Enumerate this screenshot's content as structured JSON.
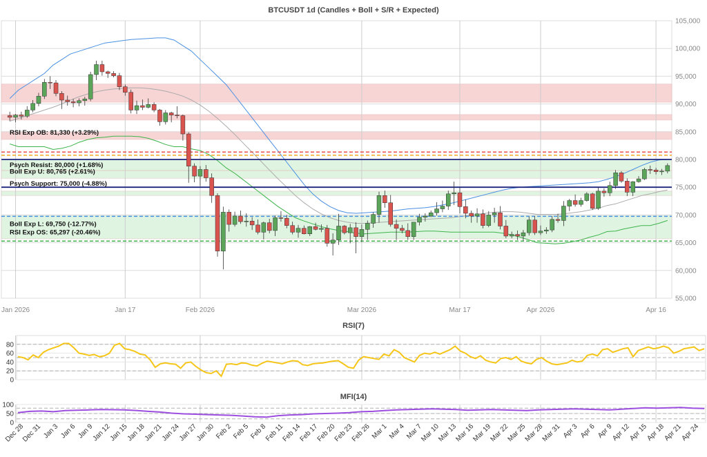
{
  "chart_data": [
    {
      "type": "candlestick",
      "title": "BTCUSDT 1d (Candles + Boll + S/R + Expected)",
      "ylim": [
        55000,
        105000
      ],
      "yticks": [
        "55,000",
        "60,000",
        "65,000",
        "70,000",
        "75,000",
        "80,000",
        "85,000",
        "90,000",
        "95,000",
        "100,000",
        "105,000"
      ],
      "xticks": [
        "Jan 2026",
        "Jan 17",
        "Feb 2026",
        "Mar 2026",
        "Mar 17",
        "Apr 2026",
        "Apr 16"
      ],
      "candles": [
        [
          87900,
          88600,
          86900,
          87600
        ],
        [
          87600,
          88200,
          86700,
          88000
        ],
        [
          88000,
          88600,
          87200,
          87800
        ],
        [
          87800,
          89600,
          87500,
          88900
        ],
        [
          88900,
          90700,
          88500,
          90100
        ],
        [
          90100,
          92000,
          89600,
          91400
        ],
        [
          91400,
          94500,
          90900,
          93900
        ],
        [
          93900,
          95000,
          92700,
          93800
        ],
        [
          93800,
          94300,
          91400,
          91900
        ],
        [
          91900,
          92300,
          89100,
          90700
        ],
        [
          90700,
          91500,
          89700,
          90400
        ],
        [
          90400,
          90900,
          89400,
          90200
        ],
        [
          90200,
          91000,
          89600,
          90600
        ],
        [
          90600,
          91300,
          89700,
          90900
        ],
        [
          90900,
          95800,
          90500,
          95300
        ],
        [
          95300,
          97800,
          94300,
          97100
        ],
        [
          97100,
          97800,
          95100,
          95800
        ],
        [
          95800,
          96000,
          94700,
          95500
        ],
        [
          95500,
          95900,
          94800,
          95100
        ],
        [
          95100,
          95600,
          92500,
          93100
        ],
        [
          93100,
          93500,
          91500,
          92100
        ],
        [
          92100,
          92600,
          88300,
          88900
        ],
        [
          88900,
          90600,
          88200,
          89700
        ],
        [
          89700,
          90800,
          88900,
          89400
        ],
        [
          89400,
          91000,
          89200,
          89900
        ],
        [
          89900,
          90300,
          88500,
          88900
        ],
        [
          88900,
          89100,
          86100,
          86800
        ],
        [
          86800,
          88900,
          86300,
          88400
        ],
        [
          88400,
          88600,
          86700,
          88000
        ],
        [
          88000,
          89600,
          87400,
          87900
        ],
        [
          87900,
          88100,
          83400,
          84600
        ],
        [
          84600,
          84900,
          75800,
          78800
        ],
        [
          78800,
          79300,
          75900,
          77000
        ],
        [
          77000,
          78800,
          75200,
          78200
        ],
        [
          78200,
          79000,
          76000,
          76700
        ],
        [
          76700,
          77500,
          72200,
          73500
        ],
        [
          73500,
          73900,
          62500,
          63500
        ],
        [
          63500,
          71500,
          60200,
          70500
        ],
        [
          70500,
          71000,
          67000,
          68300
        ],
        [
          68300,
          70600,
          67900,
          69800
        ],
        [
          69800,
          70800,
          68400,
          68800
        ],
        [
          68800,
          70300,
          67900,
          68900
        ],
        [
          68900,
          69600,
          67300,
          68200
        ],
        [
          68200,
          69200,
          66500,
          66900
        ],
        [
          66900,
          68800,
          65600,
          68600
        ],
        [
          68600,
          69300,
          66700,
          67200
        ],
        [
          67200,
          69900,
          66200,
          69500
        ],
        [
          69500,
          70700,
          68800,
          69400
        ],
        [
          69400,
          70000,
          67600,
          68100
        ],
        [
          68100,
          68800,
          66500,
          66900
        ],
        [
          66900,
          68200,
          65900,
          67600
        ],
        [
          67600,
          68100,
          66500,
          66600
        ],
        [
          66600,
          68000,
          66200,
          67900
        ],
        [
          67900,
          68600,
          67200,
          67400
        ],
        [
          67400,
          68300,
          66900,
          67600
        ],
        [
          67600,
          68200,
          64300,
          64900
        ],
        [
          64900,
          66700,
          62700,
          65500
        ],
        [
          65500,
          70200,
          64600,
          68000
        ],
        [
          68000,
          68200,
          66500,
          66800
        ],
        [
          66800,
          68400,
          64900,
          67700
        ],
        [
          67700,
          68700,
          63100,
          66100
        ],
        [
          66100,
          68300,
          65100,
          67400
        ],
        [
          67400,
          69000,
          65500,
          68500
        ],
        [
          68500,
          70500,
          67700,
          70100
        ],
        [
          70100,
          74200,
          68600,
          73500
        ],
        [
          73500,
          74400,
          71300,
          72200
        ],
        [
          72200,
          73600,
          67900,
          68300
        ],
        [
          68300,
          69200,
          65500,
          67600
        ],
        [
          67600,
          68200,
          66700,
          67200
        ],
        [
          67200,
          68500,
          65500,
          66100
        ],
        [
          66100,
          68200,
          65500,
          68700
        ],
        [
          68700,
          70200,
          68100,
          69600
        ],
        [
          69600,
          70300,
          68800,
          69800
        ],
        [
          69800,
          70800,
          69600,
          70400
        ],
        [
          70400,
          72300,
          69900,
          71100
        ],
        [
          71100,
          72600,
          70500,
          71600
        ],
        [
          71600,
          74400,
          70900,
          73800
        ],
        [
          73800,
          76000,
          71800,
          74000
        ],
        [
          74000,
          74900,
          70300,
          71500
        ],
        [
          71500,
          72800,
          69400,
          70300
        ],
        [
          70300,
          70800,
          68600,
          69800
        ],
        [
          69800,
          71200,
          68600,
          70200
        ],
        [
          70200,
          71000,
          67600,
          68100
        ],
        [
          68100,
          70700,
          67800,
          70000
        ],
        [
          70000,
          71300,
          68600,
          70400
        ],
        [
          70400,
          71600,
          67400,
          68000
        ],
        [
          68000,
          69100,
          65800,
          66200
        ],
        [
          66200,
          67000,
          65800,
          66500
        ],
        [
          66500,
          67200,
          65500,
          66200
        ],
        [
          66200,
          67300,
          65300,
          66800
        ],
        [
          66800,
          69700,
          66300,
          69100
        ],
        [
          69100,
          69800,
          66400,
          66800
        ],
        [
          66800,
          68100,
          66400,
          67100
        ],
        [
          67100,
          67800,
          66600,
          67300
        ],
        [
          67300,
          69800,
          66900,
          69200
        ],
        [
          69200,
          70200,
          68600,
          69000
        ],
        [
          69000,
          72500,
          68000,
          71600
        ],
        [
          71600,
          72900,
          70700,
          72600
        ],
        [
          72600,
          73700,
          71500,
          71900
        ],
        [
          71900,
          73100,
          71500,
          72600
        ],
        [
          72600,
          74100,
          72400,
          73800
        ],
        [
          73800,
          74000,
          70900,
          71200
        ],
        [
          71200,
          75000,
          70900,
          74300
        ],
        [
          74300,
          74800,
          73300,
          74000
        ],
        [
          74000,
          76000,
          73400,
          75300
        ],
        [
          75300,
          78100,
          74700,
          77600
        ],
        [
          77600,
          77900,
          75800,
          76100
        ],
        [
          76100,
          76600,
          73400,
          74100
        ],
        [
          74100,
          76100,
          73400,
          76000
        ],
        [
          76000,
          77000,
          75800,
          76500
        ],
        [
          76500,
          78500,
          76300,
          78200
        ],
        [
          78200,
          78900,
          77400,
          78100
        ],
        [
          78100,
          78500,
          77300,
          77800
        ],
        [
          77800,
          78300,
          77200,
          77900
        ],
        [
          77900,
          79300,
          77500,
          78900
        ]
      ],
      "boll_mid": [
        86900,
        87400,
        87900,
        88400,
        88900,
        89400,
        90000,
        90700,
        91300,
        91800,
        92200,
        92500,
        92700,
        92800,
        92900,
        92900,
        92800,
        92600,
        92300,
        91900,
        91400,
        90700,
        89800,
        88700,
        87400,
        86000,
        84500,
        82900,
        81300,
        79700,
        78100,
        76500,
        75000,
        73500,
        72200,
        71100,
        70200,
        69500,
        69000,
        68700,
        68500,
        68500,
        68600,
        68700,
        68800,
        68900,
        69000,
        69100,
        69200,
        69300,
        69400,
        69500,
        69700,
        69900,
        70100,
        70300,
        70500,
        70600,
        70600,
        70500,
        70300,
        70100,
        70100,
        70100,
        70200,
        70400,
        70600,
        70900,
        71200,
        71700,
        72000,
        72500,
        73000,
        73500,
        73800,
        74200,
        74500
      ],
      "boll_up": [
        91000,
        92500,
        93500,
        94500,
        95500,
        97000,
        98000,
        99000,
        99500,
        100000,
        100500,
        101000,
        101200,
        101400,
        101600,
        101700,
        101800,
        101900,
        101900,
        101500,
        100500,
        99500,
        98000,
        96500,
        95000,
        93500,
        91500,
        89500,
        87500,
        85500,
        83500,
        81500,
        79500,
        77500,
        75500,
        73800,
        72500,
        71500,
        70800,
        70400,
        70300,
        70400,
        70500,
        70600,
        70700,
        70900,
        71100,
        71200,
        71300,
        71500,
        71800,
        72100,
        72500,
        72900,
        73300,
        73700,
        74100,
        74500,
        74800,
        75000,
        75100,
        75200,
        75300,
        75400,
        75500,
        75600,
        75700,
        75800,
        76000,
        76400,
        76900,
        77500,
        78200,
        78900,
        79500,
        79900,
        80000
      ],
      "boll_low": [
        82800,
        82300,
        82300,
        82300,
        82300,
        81800,
        82000,
        82400,
        83100,
        83600,
        83900,
        84000,
        84200,
        84200,
        84200,
        84100,
        83800,
        83300,
        82700,
        82300,
        82300,
        81900,
        81600,
        80900,
        79800,
        78500,
        77500,
        76300,
        75100,
        73900,
        72700,
        71500,
        70500,
        69500,
        68900,
        68400,
        67900,
        67500,
        67200,
        67000,
        66700,
        66600,
        66700,
        66800,
        66900,
        66900,
        66900,
        67000,
        67100,
        67100,
        67000,
        66900,
        66900,
        66900,
        66900,
        66900,
        66900,
        66700,
        66400,
        66000,
        65500,
        65000,
        64900,
        64800,
        64900,
        65200,
        65500,
        66000,
        66400,
        67000,
        67100,
        67500,
        67800,
        68100,
        68100,
        68500,
        69000
      ],
      "boll_start": 0,
      "boll_style": {
        "mid": "#aaaaaa",
        "up": "#4a90e2",
        "low": "#3cb44b"
      },
      "zones": [
        {
          "lo": 90300,
          "hi": 93600,
          "color": "#f4c7c7"
        },
        {
          "lo": 87100,
          "hi": 88100,
          "color": "#f4c7c7"
        },
        {
          "lo": 83600,
          "hi": 85000,
          "color": "#f4c7c7"
        },
        {
          "lo": 78000,
          "hi": 80000,
          "color": "#d6f0d8"
        },
        {
          "lo": 76600,
          "hi": 78000,
          "color": "#d6f0d8"
        },
        {
          "lo": 73500,
          "hi": 74300,
          "color": "#d6f0d8"
        },
        {
          "lo": 65700,
          "hi": 70000,
          "color": "#d6f0d8"
        }
      ],
      "levels": [
        {
          "value": 81330,
          "label": "RSI Exp OB: 81,330 (+3.29%)",
          "color": "#e94e4e",
          "style": "dash"
        },
        {
          "value": 80765,
          "label": "Boll Exp U: 80,765 (+2.61%)",
          "color": "#f5a623",
          "style": "dash"
        },
        {
          "value": 80000,
          "label": "Psych Resist: 80,000 (+1.68%)",
          "color": "#1a237e",
          "style": "solid"
        },
        {
          "value": 75000,
          "label": "Psych Support: 75,000 (-4.88%)",
          "color": "#1a237e",
          "style": "solid"
        },
        {
          "value": 69750,
          "label": "Boll Exp L: 69,750 (-12.77%)",
          "color": "#4a90e2",
          "style": "dash"
        },
        {
          "value": 65297,
          "label": "RSI Exp OS: 65,297 (-20.46%)",
          "color": "#3cb44b",
          "style": "dash"
        }
      ]
    },
    {
      "type": "line",
      "title": "RSI(7)",
      "ylim": [
        0,
        100
      ],
      "yticks": [
        "0",
        "20",
        "40",
        "60",
        "80"
      ],
      "ref_lines": [
        80,
        50,
        20
      ],
      "color": "#f5c518",
      "values": [
        52,
        50,
        45,
        56,
        50,
        62,
        68,
        72,
        76,
        82,
        82,
        72,
        60,
        58,
        55,
        57,
        52,
        54,
        60,
        78,
        82,
        70,
        68,
        64,
        58,
        56,
        45,
        28,
        36,
        38,
        36,
        35,
        26,
        38,
        40,
        30,
        22,
        16,
        14,
        20,
        8,
        35,
        36,
        34,
        38,
        37,
        33,
        31,
        37,
        42,
        40,
        38,
        36,
        40,
        43,
        42,
        34,
        32,
        36,
        37,
        38,
        40,
        42,
        43,
        36,
        28,
        26,
        44,
        52,
        50,
        48,
        46,
        58,
        54,
        68,
        62,
        50,
        45,
        40,
        55,
        60,
        58,
        62,
        58,
        63,
        68,
        76,
        65,
        60,
        52,
        48,
        54,
        44,
        40,
        38,
        48,
        50,
        46,
        52,
        42,
        38,
        36,
        46,
        50,
        42,
        36,
        34,
        36,
        38,
        44,
        40,
        42,
        55,
        58,
        54,
        68,
        70,
        62,
        66,
        70,
        72,
        52,
        66,
        70,
        74,
        70,
        72,
        76,
        72,
        60,
        64,
        70,
        72,
        74,
        66,
        70
      ]
    },
    {
      "type": "line",
      "title": "MFI(14)",
      "ylim": [
        0,
        100
      ],
      "yticks": [
        "0",
        "50",
        "100"
      ],
      "ref_lines": [
        80,
        50,
        20
      ],
      "color": "#9b4de0",
      "xticks": [
        "Dec 28",
        "Dec 31",
        "Jan 3",
        "Jan 6",
        "Jan 9",
        "Jan 12",
        "Jan 15",
        "Jan 18",
        "Jan 21",
        "Jan 24",
        "Jan 27",
        "Jan 30",
        "Feb 2",
        "Feb 5",
        "Feb 8",
        "Feb 11",
        "Feb 14",
        "Feb 17",
        "Feb 20",
        "Feb 23",
        "Feb 26",
        "Mar 1",
        "Mar 4",
        "Mar 7",
        "Mar 10",
        "Mar 13",
        "Mar 16",
        "Mar 19",
        "Mar 22",
        "Mar 25",
        "Mar 28",
        "Mar 31",
        "Apr 3",
        "Apr 6",
        "Apr 9",
        "Apr 12",
        "Apr 15",
        "Apr 18",
        "Apr 21",
        "Apr 24"
      ],
      "values": [
        55,
        62,
        64,
        60,
        66,
        68,
        70,
        72,
        71,
        70,
        67,
        62,
        58,
        52,
        48,
        46,
        44,
        42,
        40,
        36,
        32,
        30,
        38,
        42,
        44,
        48,
        50,
        52,
        55,
        60,
        62,
        66,
        70,
        72,
        74,
        76,
        74,
        72,
        68,
        70,
        72,
        70,
        68,
        66,
        70,
        72,
        74,
        76,
        74,
        72,
        70,
        74,
        78,
        82,
        80,
        82,
        84,
        80,
        78
      ]
    }
  ]
}
